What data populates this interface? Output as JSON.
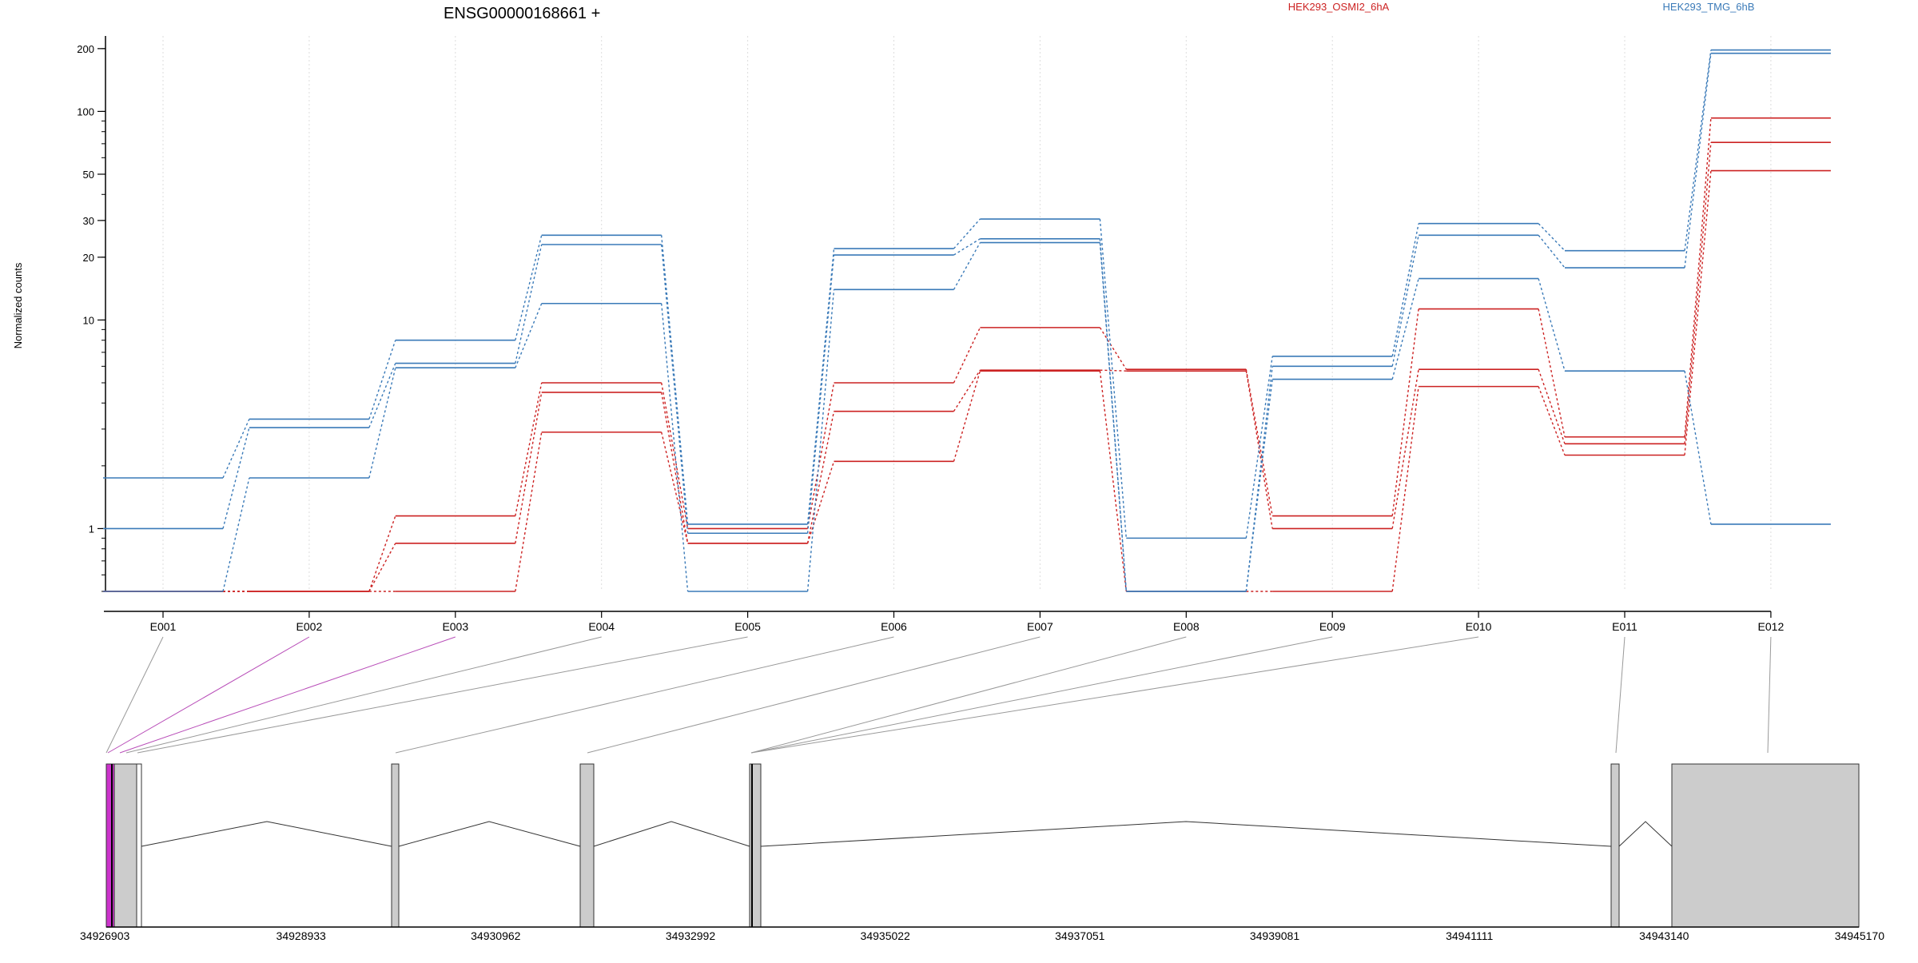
{
  "chart_data": {
    "type": "line",
    "title": "ENSG00000168661 +",
    "ylabel": "Normalized counts",
    "y_scale": "log",
    "ylim": [
      0.5,
      230
    ],
    "y_ticks": [
      1,
      10,
      20,
      30,
      50,
      100,
      200
    ],
    "y_tick_labels": [
      "1",
      "10",
      "20",
      "30",
      "50",
      "100",
      "200"
    ],
    "grid": "vertical dotted lines at exon bins",
    "legend_position": "top",
    "colors": {
      "HEK293_OSMI2_6hA": "#cc2222",
      "HEK293_TMG_6hB": "#3a7ab8"
    },
    "categories": [
      "E001",
      "E002",
      "E003",
      "E004",
      "E005",
      "E006",
      "E007",
      "E008",
      "E009",
      "E010",
      "E011",
      "E012"
    ],
    "series": [
      {
        "name": "HEK293_OSMI2_6hA",
        "group": "HEK293_OSMI2_6hA",
        "values": [
          0.5,
          0.5,
          1.15,
          5.0,
          1.0,
          5.0,
          9.2,
          5.8,
          1.15,
          11.3,
          2.75,
          93
        ]
      },
      {
        "name": "HEK293_OSMI2_6hA",
        "group": "HEK293_OSMI2_6hA",
        "values": [
          0.5,
          0.5,
          0.85,
          4.5,
          0.85,
          3.65,
          5.75,
          5.7,
          1.0,
          5.8,
          2.55,
          71
        ]
      },
      {
        "name": "HEK293_OSMI2_6hA",
        "group": "HEK293_OSMI2_6hA",
        "values": [
          0.5,
          0.5,
          0.5,
          2.9,
          0.85,
          2.1,
          5.7,
          0.5,
          0.5,
          4.8,
          2.25,
          52
        ]
      },
      {
        "name": "HEK293_TMG_6hB",
        "group": "HEK293_TMG_6hB",
        "values": [
          1.75,
          3.35,
          8.0,
          25.5,
          1.05,
          22.0,
          30.5,
          0.9,
          6.7,
          29.0,
          21.5,
          197
        ]
      },
      {
        "name": "HEK293_TMG_6hB",
        "group": "HEK293_TMG_6hB",
        "values": [
          1.0,
          3.05,
          6.2,
          23.0,
          0.95,
          20.5,
          24.5,
          0.5,
          6.0,
          25.5,
          17.8,
          190
        ]
      },
      {
        "name": "HEK293_TMG_6hB",
        "group": "HEK293_TMG_6hB",
        "values": [
          0.5,
          1.75,
          5.9,
          12.0,
          0.5,
          14.0,
          23.5,
          0.5,
          5.2,
          15.8,
          5.7,
          1.05
        ]
      }
    ],
    "genomic_axis": {
      "ticks": [
        34926903,
        34928933,
        34930962,
        34932992,
        34935022,
        34937051,
        34939081,
        34941111,
        34943140,
        34945170
      ],
      "tick_labels": [
        "34926903",
        "34928933",
        "34930962",
        "34932992",
        "34935022",
        "34937051",
        "34939081",
        "34941111",
        "34943140",
        "34945170"
      ]
    }
  }
}
